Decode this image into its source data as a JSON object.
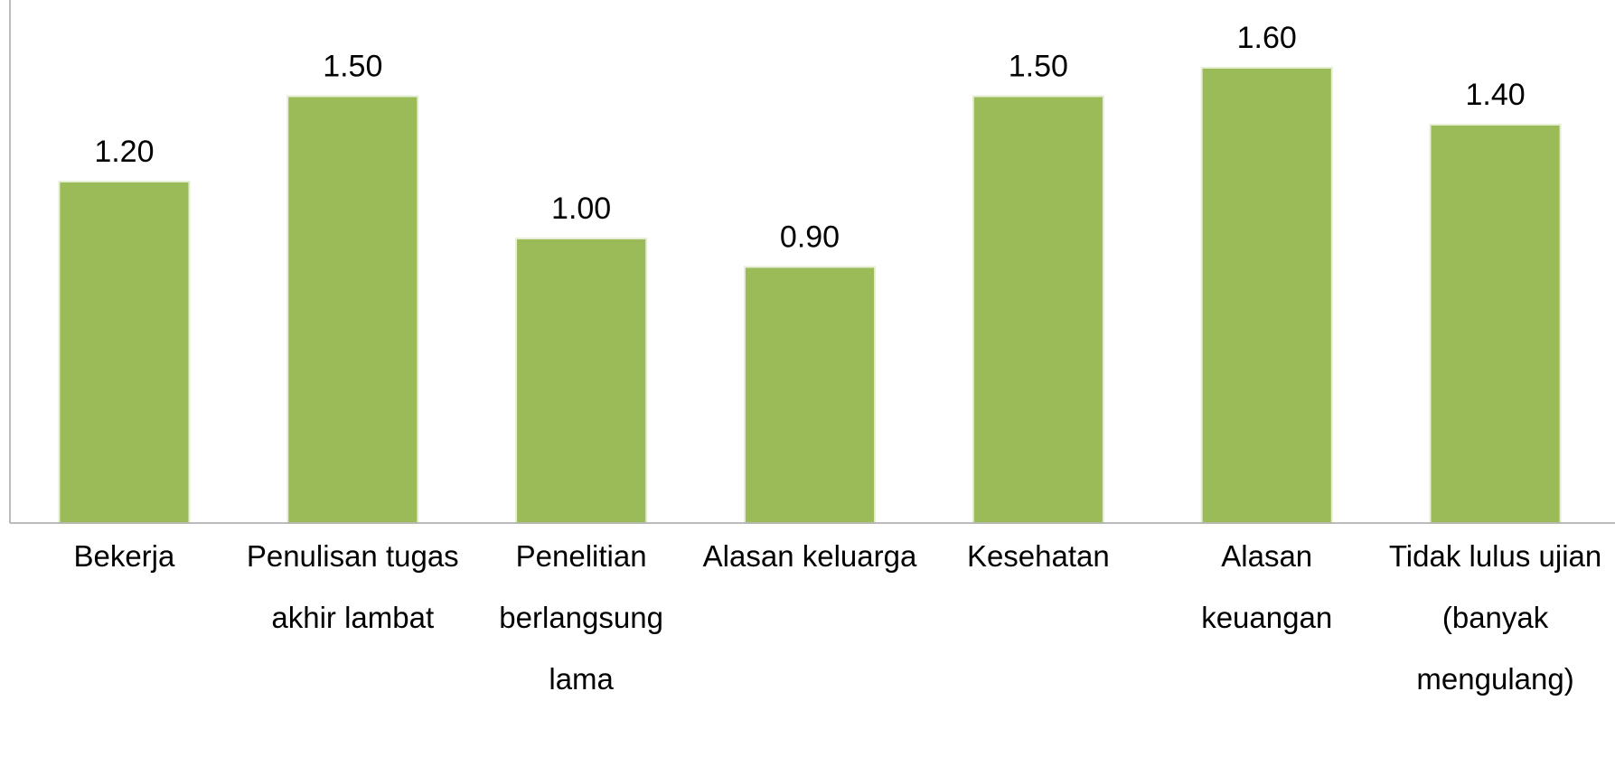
{
  "chart_data": {
    "type": "bar",
    "categories": [
      "Bekerja",
      "Penulisan tugas akhir lambat",
      "Penelitian berlangsung lama",
      "Alasan keluarga",
      "Kesehatan",
      "Alasan keuangan",
      "Tidak lulus ujian (banyak mengulang)"
    ],
    "values": [
      1.2,
      1.5,
      1.0,
      0.9,
      1.5,
      1.6,
      1.4
    ],
    "value_labels": [
      "1.20",
      "1.50",
      "1.00",
      "0.90",
      "1.50",
      "1.60",
      "1.40"
    ],
    "color": "#9bbb59",
    "ylim": [
      0,
      1.8
    ],
    "grid": false
  }
}
